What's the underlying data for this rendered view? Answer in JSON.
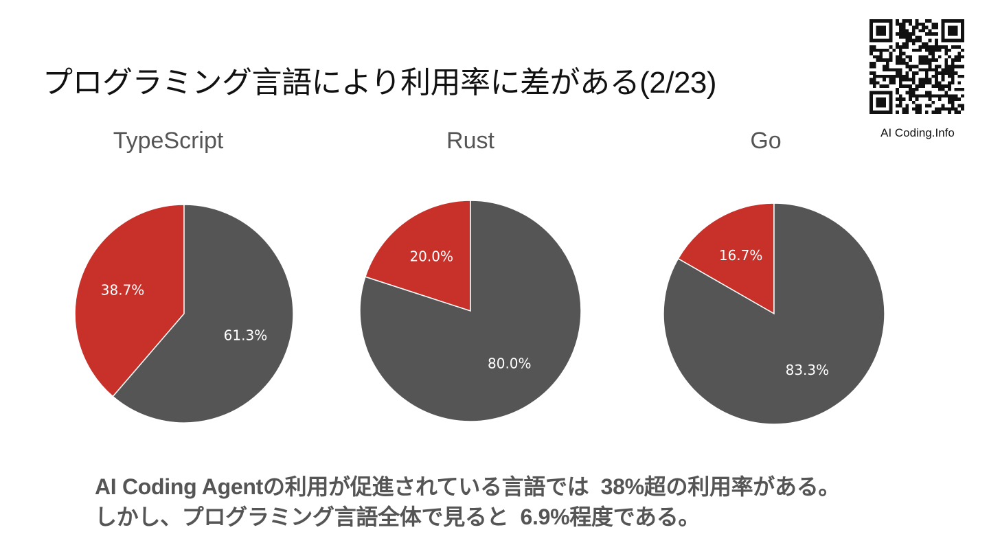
{
  "page": {
    "title": "プログラミング言語により利用率に差がある(2/23)"
  },
  "brand": {
    "qr_caption": "AI Coding.Info"
  },
  "colors": {
    "ai_share": "#c8302a",
    "other_share": "#555555",
    "slice_border": "#ffffff",
    "label_text": "#ffffff"
  },
  "chart_data": [
    {
      "type": "pie",
      "title": "TypeScript",
      "values": [
        38.7,
        61.3
      ],
      "labels": [
        "38.7%",
        "61.3%"
      ]
    },
    {
      "type": "pie",
      "title": "Rust",
      "values": [
        20.0,
        80.0
      ],
      "labels": [
        "20.0%",
        "80.0%"
      ]
    },
    {
      "type": "pie",
      "title": "Go",
      "values": [
        16.7,
        83.3
      ],
      "labels": [
        "16.7%",
        "83.3%"
      ]
    }
  ],
  "caption": {
    "line1": "AI Coding Agentの利用が促進されている言語では  38%超の利用率がある。",
    "line2": "しかし、プログラミング言語全体で見ると  6.9%程度である。"
  }
}
